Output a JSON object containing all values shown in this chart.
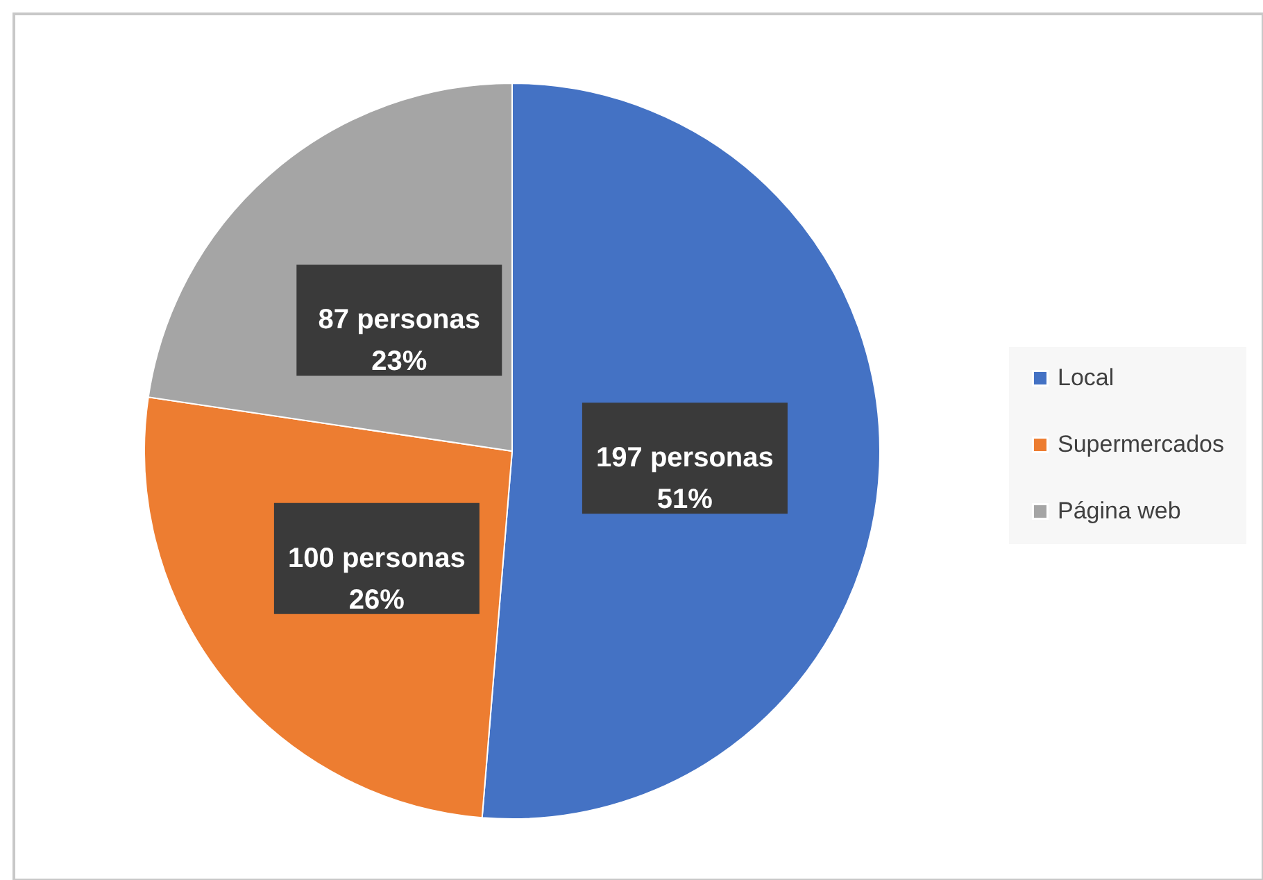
{
  "chart_data": {
    "type": "pie",
    "categories": [
      "Local",
      "Supermercados",
      "Página web"
    ],
    "values": [
      197,
      100,
      87
    ],
    "colors": [
      "#4472c4",
      "#ed7d31",
      "#a5a5a5"
    ],
    "value_labels": [
      "197 personas\n51%",
      "100 personas\n26%",
      "87 personas\n23%"
    ],
    "legend": "right"
  }
}
